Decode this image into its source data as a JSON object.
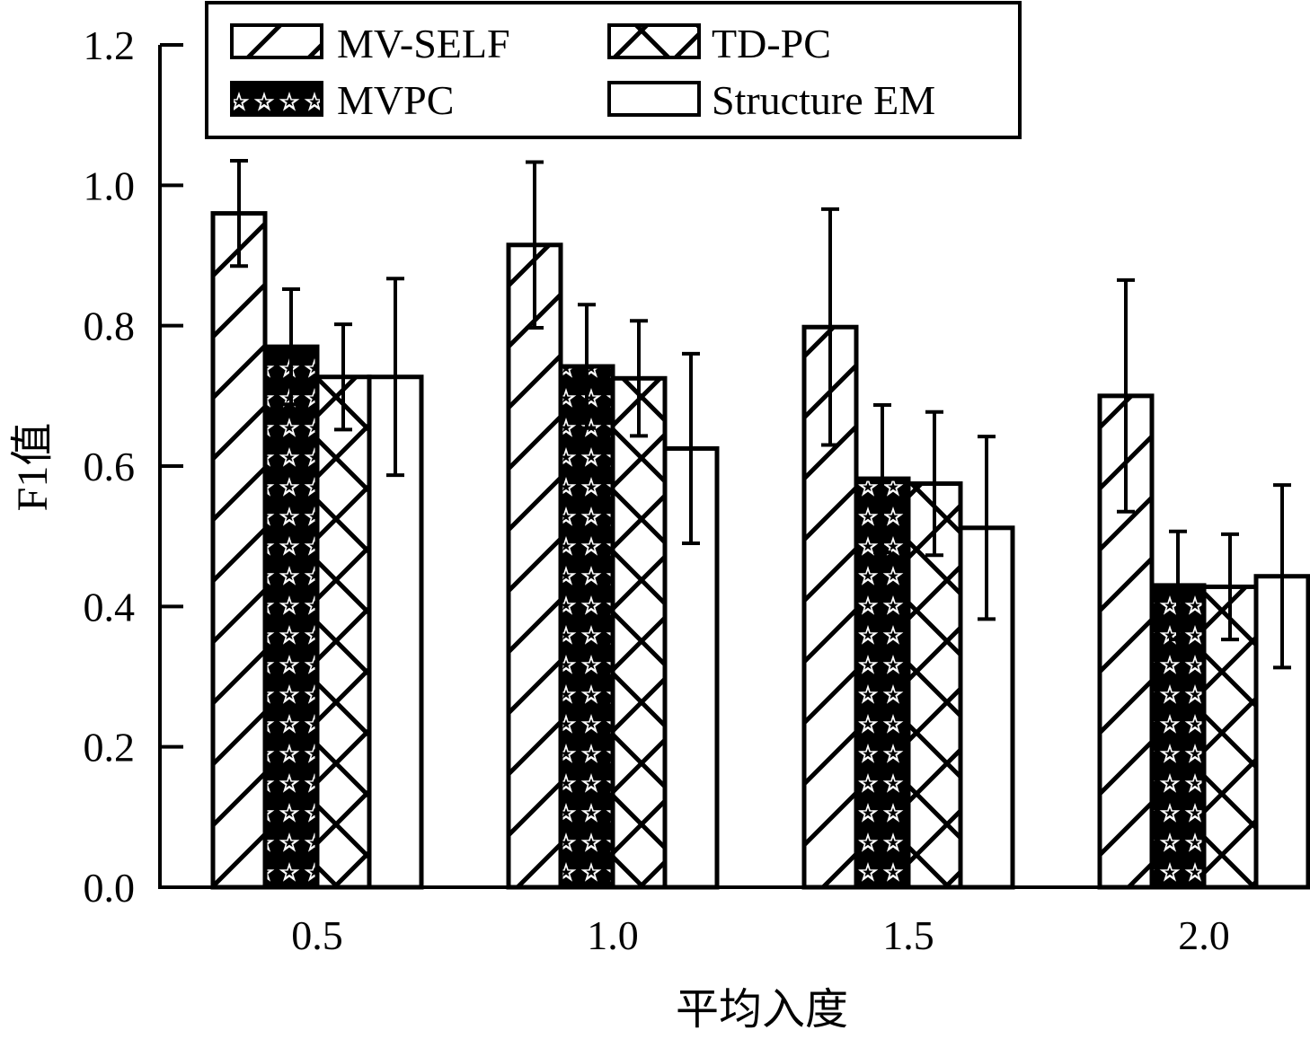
{
  "chart_data": {
    "type": "bar",
    "xlabel": "平均入度",
    "ylabel": "F1值",
    "categories": [
      "0.5",
      "1.0",
      "1.5",
      "2.0"
    ],
    "ylim": [
      0,
      1.2
    ],
    "yticks": [
      "0.0",
      "0.2",
      "0.4",
      "0.6",
      "0.8",
      "1.0",
      "1.2"
    ],
    "grid": false,
    "legend_position": "top",
    "series": [
      {
        "name": "MV-SELF",
        "pattern": "diagonal-hatch",
        "values": [
          0.96,
          0.915,
          0.798,
          0.7
        ],
        "errors": [
          0.075,
          0.118,
          0.168,
          0.165
        ]
      },
      {
        "name": "MVPC",
        "pattern": "stars",
        "values": [
          0.77,
          0.742,
          0.582,
          0.43
        ],
        "errors": [
          0.082,
          0.088,
          0.105,
          0.077
        ]
      },
      {
        "name": "TD-PC",
        "pattern": "cross-hatch",
        "values": [
          0.727,
          0.725,
          0.575,
          0.428
        ],
        "errors": [
          0.075,
          0.082,
          0.102,
          0.075
        ]
      },
      {
        "name": "Structure EM",
        "pattern": "none",
        "values": [
          0.727,
          0.625,
          0.512,
          0.443
        ],
        "errors": [
          0.14,
          0.135,
          0.13,
          0.13
        ]
      }
    ]
  }
}
